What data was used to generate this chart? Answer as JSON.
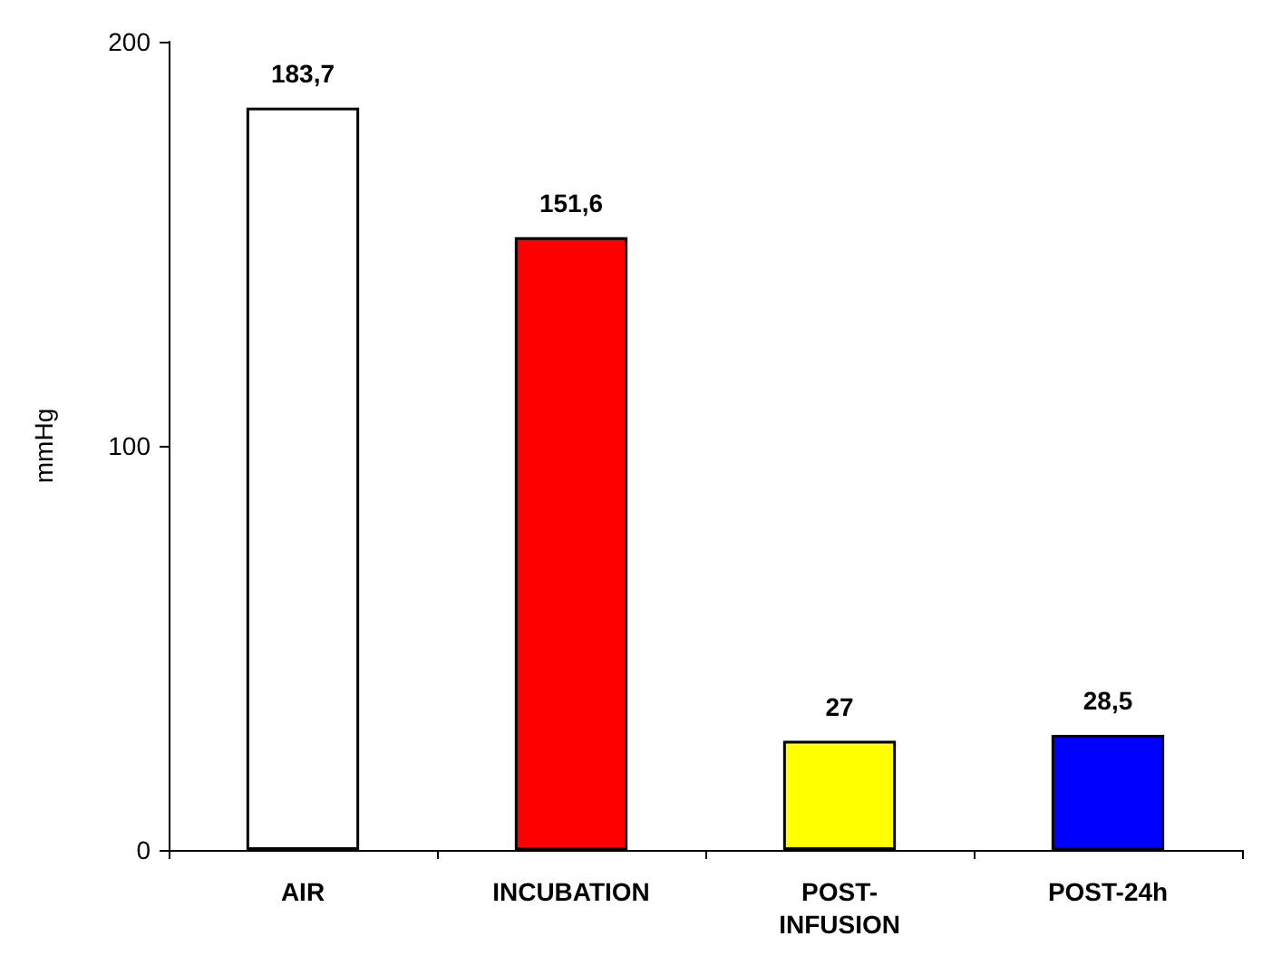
{
  "chart_data": {
    "type": "bar",
    "ylabel": "mmHg",
    "categories": [
      "AIR",
      "INCUBATION",
      "POST-INFUSION",
      "POST-24h"
    ],
    "values": [
      183.7,
      151.6,
      27,
      28.5
    ],
    "colors": [
      "#ffffff",
      "#ff0000",
      "#ffff00",
      "#0000ff"
    ],
    "value_labels": [
      "183,7",
      "151,6",
      "27",
      "28,5"
    ],
    "ylim": [
      0,
      200
    ],
    "yticks": [
      0,
      100,
      200
    ],
    "grid": false
  }
}
